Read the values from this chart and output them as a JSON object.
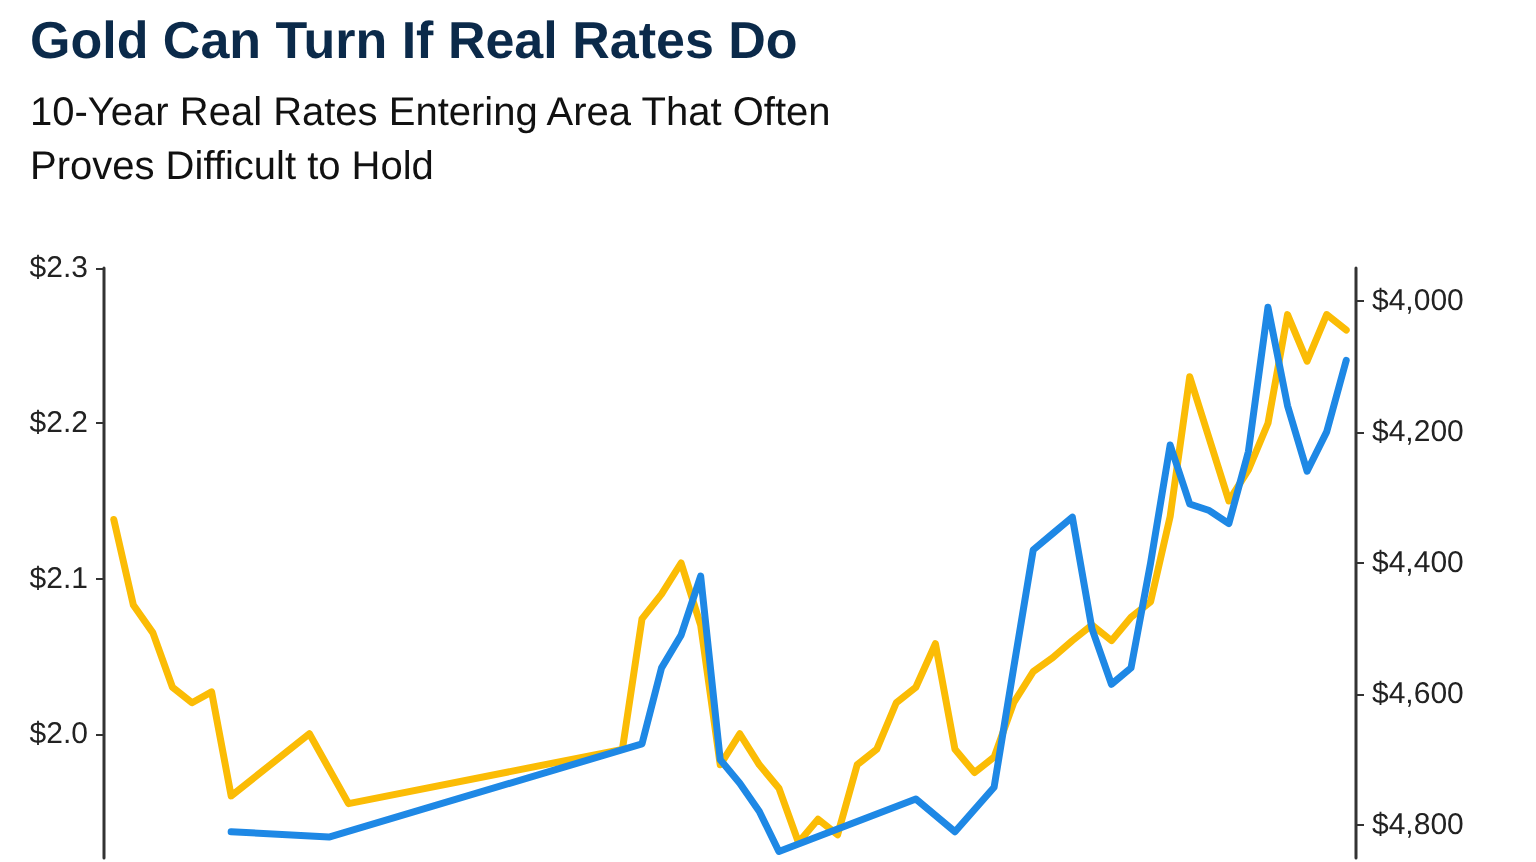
{
  "chart_data": {
    "type": "line",
    "title": "Gold Can Turn If Real Rates Do",
    "subtitle": "10-Year Real Rates Entering Area That Often\nProves Difficult to Hold",
    "categories": [
      null,
      null,
      null,
      null,
      null,
      null,
      null,
      null,
      null,
      null,
      null,
      null,
      null,
      null,
      null,
      null,
      null,
      null,
      null,
      null,
      null,
      null,
      null,
      null,
      null,
      null,
      null,
      null,
      null,
      null,
      null,
      null,
      null,
      null,
      null,
      null,
      null,
      null,
      null,
      null,
      null,
      null,
      null,
      null,
      null,
      null,
      null,
      null,
      null,
      null,
      null,
      null,
      null,
      null,
      null,
      null,
      null,
      null,
      null,
      null,
      null,
      null,
      null,
      null
    ],
    "series": [
      {
        "color": "#fbbc05",
        "values": [
          2.138,
          2.083,
          2.065,
          2.03,
          2.02,
          2.027,
          1.96,
          null,
          null,
          null,
          2.0,
          null,
          1.955,
          null,
          null,
          null,
          null,
          null,
          null,
          null,
          null,
          null,
          null,
          null,
          null,
          null,
          1.99,
          2.074,
          2.09,
          2.11,
          2.07,
          1.98,
          2.0,
          1.98,
          1.965,
          1.93,
          1.945,
          1.935,
          1.98,
          1.99,
          2.02,
          2.03,
          2.058,
          1.99,
          1.975,
          1.985,
          2.02,
          2.04,
          2.049,
          2.06,
          2.07,
          2.06,
          2.075,
          2.085,
          2.14,
          2.23,
          2.19,
          2.15,
          2.17,
          2.2,
          2.27,
          2.24,
          2.27,
          2.26
        ]
      },
      {
        "color": "#1e88e5",
        "axis": "y2",
        "values": [
          null,
          null,
          null,
          null,
          null,
          null,
          4810,
          null,
          null,
          null,
          null,
          4818,
          null,
          null,
          null,
          null,
          null,
          null,
          null,
          null,
          null,
          null,
          null,
          null,
          null,
          null,
          null,
          4676,
          4560,
          4510,
          4420,
          4700,
          4736,
          4779,
          4840,
          null,
          null,
          null,
          null,
          null,
          null,
          4760,
          null,
          4810,
          null,
          4742,
          4560,
          4380,
          4355,
          4330,
          4500,
          4585,
          4560,
          4400,
          4220,
          4310,
          4320,
          4340,
          4230,
          4010,
          4160,
          4260,
          4200,
          4091
        ]
      }
    ],
    "ylim": [
      1.92,
      2.3
    ],
    "yticks": [
      {
        "value": 2.0,
        "label": "$2.0"
      },
      {
        "value": 2.1,
        "label": "$2.1"
      },
      {
        "value": 2.2,
        "label": "$2.2"
      },
      {
        "value": 2.3,
        "label": "$2.3"
      }
    ],
    "y2lim": [
      4850,
      3950
    ],
    "y2ticks": [
      {
        "value": 4000,
        "label": "$4,000"
      },
      {
        "value": 4200,
        "label": "$4,200"
      },
      {
        "value": 4400,
        "label": "$4,400"
      },
      {
        "value": 4600,
        "label": "$4,600"
      },
      {
        "value": 4800,
        "label": "$4,800"
      }
    ],
    "tick_labels": "y",
    "grid": false
  }
}
